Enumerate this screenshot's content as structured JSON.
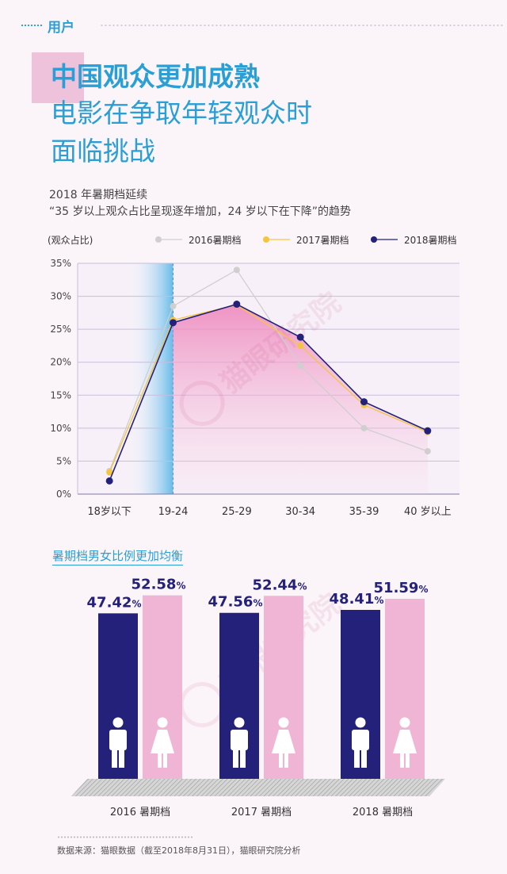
{
  "header": {
    "section_label": "用户"
  },
  "title": {
    "line1": "中国观众更加成熟",
    "line2": "电影在争取年轻观众时",
    "line3": "面临挑战"
  },
  "subtitle": {
    "line1": "2018 年暑期档延续",
    "line2": "“35 岁以上观众占比呈现逐年增加，24 岁以下在下降”的趋势"
  },
  "watermark": "猫眼研究院",
  "colors": {
    "accent_blue": "#2a9fd6",
    "navy": "#23217a",
    "pink": "#f0b5d4",
    "gray_series": "#cfcfcf",
    "yellow_series": "#f5c542"
  },
  "chart_data": [
    {
      "type": "line",
      "title": "",
      "xlabel": "",
      "ylabel": "(观众占比)",
      "categories": [
        "18岁以下",
        "19-24",
        "25-29",
        "30-34",
        "35-39",
        "40 岁以上"
      ],
      "yticks": [
        "0%",
        "5%",
        "10%",
        "15%",
        "20%",
        "25%",
        "30%",
        "35%"
      ],
      "ylim": [
        0,
        35
      ],
      "grid": true,
      "legend": "top-right",
      "series": [
        {
          "name": "2016暑期档",
          "values": [
            3.5,
            28.5,
            34,
            19.5,
            10,
            6.5
          ],
          "color": "#cfcfcf"
        },
        {
          "name": "2017暑期档",
          "values": [
            3.3,
            26.4,
            28.7,
            22.5,
            13.5,
            9.4
          ],
          "color": "#f5c542"
        },
        {
          "name": "2018暑期档",
          "values": [
            2,
            26,
            28.8,
            23.8,
            14,
            9.6
          ],
          "color": "#23217a"
        }
      ]
    },
    {
      "type": "bar",
      "title": "暑期档男女比例更加均衡",
      "categories": [
        "2016 暑期档",
        "2017 暑期档",
        "2018 暑期档"
      ],
      "ylim": [
        0,
        60
      ],
      "series": [
        {
          "name": "",
          "values": [
            47.42,
            47.56,
            48.41
          ],
          "color": "#23217a",
          "labels": [
            "47.42",
            "47.56",
            "48.41"
          ]
        },
        {
          "name": "",
          "values": [
            52.58,
            52.44,
            51.59
          ],
          "color": "#f0b5d4",
          "labels": [
            "52.58",
            "52.44",
            "51.59"
          ]
        }
      ],
      "unit": "%"
    }
  ],
  "source": "数据来源：猫眼数据（截至2018年8月31日），猫眼研究院分析"
}
